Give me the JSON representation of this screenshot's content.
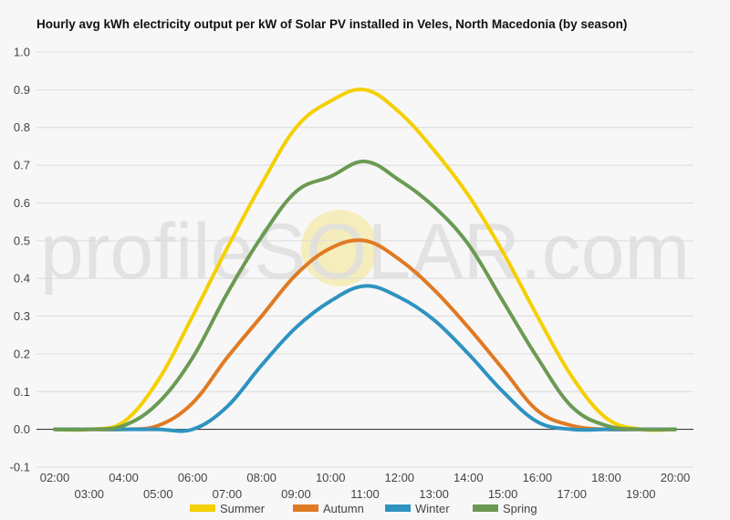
{
  "chart_data": {
    "type": "line",
    "title": "Hourly avg kWh electricity output per kW of Solar PV installed in Veles, North Macedonia (by season)",
    "xlabel": "",
    "ylabel": "",
    "x_ticks": [
      "02:00",
      "03:00",
      "04:00",
      "05:00",
      "06:00",
      "07:00",
      "08:00",
      "09:00",
      "10:00",
      "11:00",
      "12:00",
      "13:00",
      "14:00",
      "15:00",
      "16:00",
      "17:00",
      "18:00",
      "19:00",
      "20:00"
    ],
    "x_hours": [
      2,
      3,
      4,
      5,
      6,
      7,
      8,
      9,
      10,
      11,
      12,
      13,
      14,
      15,
      16,
      17,
      18,
      19,
      20
    ],
    "y_ticks": [
      "1.0",
      "0.9",
      "0.8",
      "0.7",
      "0.6",
      "0.5",
      "0.4",
      "0.3",
      "0.2",
      "0.1",
      "0.0",
      "-0.1"
    ],
    "ylim": [
      -0.1,
      1.0
    ],
    "xlim": [
      2,
      20
    ],
    "grid": true,
    "legend_position": "bottom",
    "watermark": "profileSOLAR.com",
    "series": [
      {
        "name": "Summer",
        "color": "#f5d000",
        "values": [
          0.0,
          0.0,
          0.02,
          0.13,
          0.3,
          0.48,
          0.65,
          0.8,
          0.87,
          0.9,
          0.84,
          0.74,
          0.62,
          0.47,
          0.3,
          0.14,
          0.03,
          0.0,
          0.0
        ]
      },
      {
        "name": "Autumn",
        "color": "#e07a23",
        "values": [
          0.0,
          0.0,
          0.0,
          0.01,
          0.07,
          0.19,
          0.3,
          0.41,
          0.48,
          0.5,
          0.45,
          0.37,
          0.27,
          0.16,
          0.05,
          0.01,
          0.0,
          0.0,
          0.0
        ]
      },
      {
        "name": "Winter",
        "color": "#2e93c0",
        "values": [
          0.0,
          0.0,
          0.0,
          0.0,
          0.0,
          0.06,
          0.17,
          0.27,
          0.34,
          0.38,
          0.35,
          0.29,
          0.2,
          0.1,
          0.02,
          0.0,
          0.0,
          0.0,
          0.0
        ]
      },
      {
        "name": "Spring",
        "color": "#6a9a53",
        "values": [
          0.0,
          0.0,
          0.01,
          0.07,
          0.19,
          0.36,
          0.51,
          0.63,
          0.67,
          0.71,
          0.66,
          0.59,
          0.49,
          0.34,
          0.19,
          0.06,
          0.01,
          0.0,
          0.0
        ]
      }
    ]
  }
}
